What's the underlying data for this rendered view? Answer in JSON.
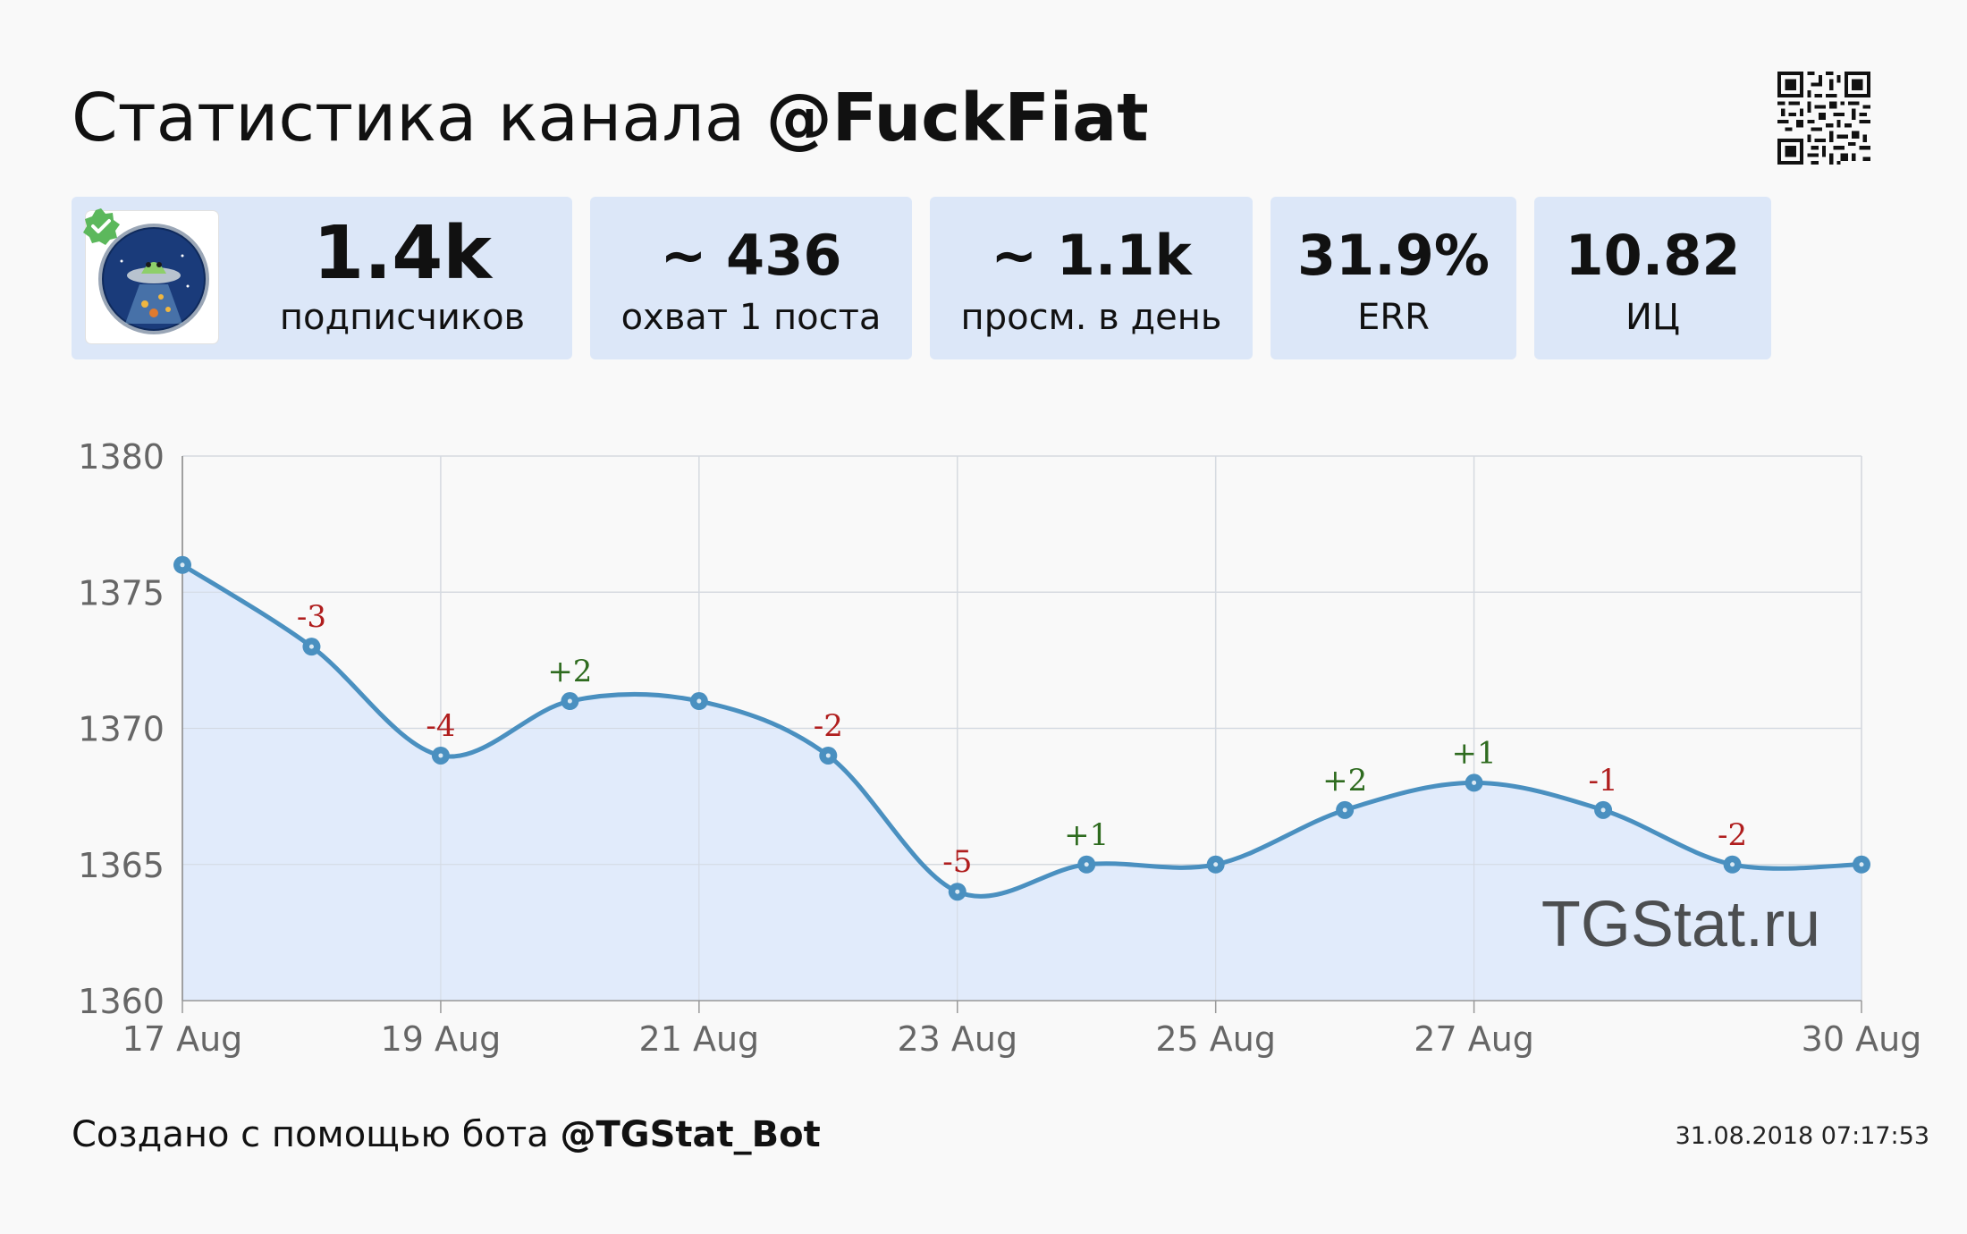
{
  "header": {
    "title_prefix": "Статистика канала",
    "channel": "@FuckFiat"
  },
  "stats": [
    {
      "value": "1.4k",
      "label": "подписчиков"
    },
    {
      "value": "~ 436",
      "label": "охват 1 поста"
    },
    {
      "value": "~ 1.1k",
      "label": "просм. в день"
    },
    {
      "value": "31.9%",
      "label": "ERR"
    },
    {
      "value": "10.82",
      "label": "ИЦ"
    }
  ],
  "watermark": "TGStat.ru",
  "footer": {
    "text": "Создано с помощью бота",
    "bot": "@TGStat_Bot",
    "timestamp": "31.08.2018 07:17:53"
  },
  "colors": {
    "line": "#4a90c0",
    "area": "#dfeafb",
    "card": "#dce7f8",
    "positive": "#2e6b1f",
    "negative": "#b01e1e"
  },
  "chart_data": {
    "type": "area",
    "x": [
      "17 Aug",
      "18 Aug",
      "19 Aug",
      "20 Aug",
      "21 Aug",
      "22 Aug",
      "23 Aug",
      "24 Aug",
      "25 Aug",
      "26 Aug",
      "27 Aug",
      "28 Aug",
      "29 Aug",
      "30 Aug"
    ],
    "x_tick_labels": [
      "17 Aug",
      "19 Aug",
      "21 Aug",
      "23 Aug",
      "25 Aug",
      "27 Aug",
      "30 Aug"
    ],
    "series": [
      {
        "values": [
          1376,
          1373,
          1369,
          1371,
          1371,
          1369,
          1364,
          1365,
          1365,
          1367,
          1368,
          1367,
          1365,
          1365
        ]
      }
    ],
    "changes": [
      "",
      "-3",
      "-4",
      "+2",
      "",
      "-2",
      "-5",
      "+1",
      "",
      "+2",
      "+1",
      "-1",
      "-2",
      ""
    ],
    "ylim": [
      1360,
      1380
    ],
    "y_ticks": [
      1360,
      1365,
      1370,
      1375,
      1380
    ],
    "grid": true,
    "title": "",
    "xlabel": "",
    "ylabel": ""
  }
}
